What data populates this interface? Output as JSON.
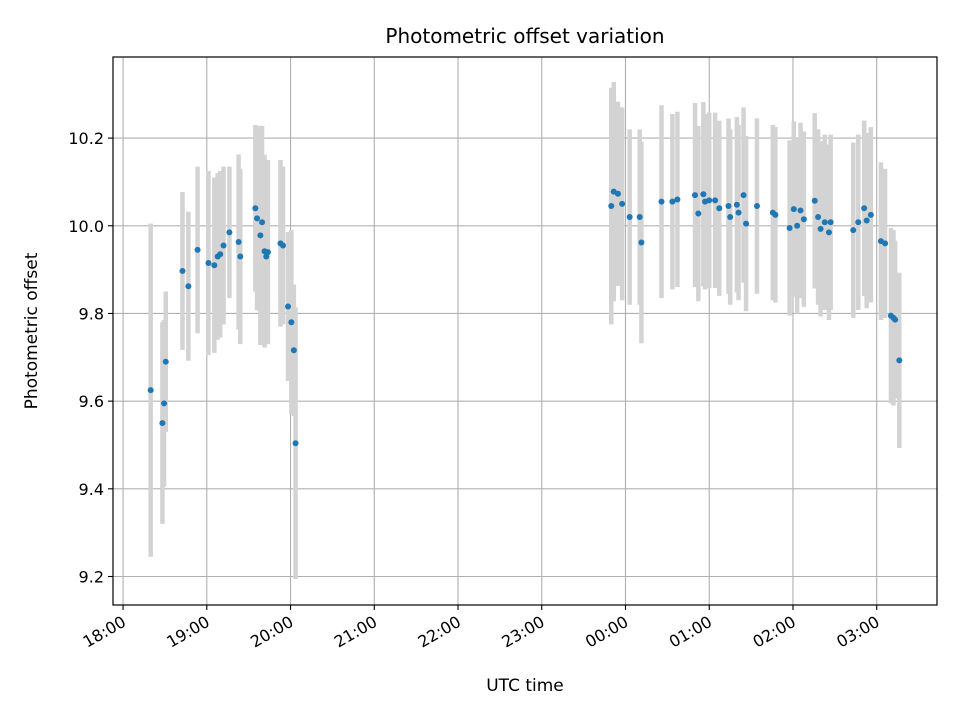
{
  "chart_data": {
    "type": "scatter",
    "title": "Photometric offset variation",
    "xlabel": "UTC time",
    "ylabel": "Photometric offset",
    "x_ticks": [
      "18:00",
      "19:00",
      "20:00",
      "21:00",
      "22:00",
      "23:00",
      "00:00",
      "01:00",
      "02:00",
      "03:00"
    ],
    "x_tick_hours": [
      0,
      1,
      2,
      3,
      4,
      5,
      6,
      7,
      8,
      9
    ],
    "x_axis_start": "18:00",
    "x_unit": "hours after 18:00 UTC",
    "xlim": [
      -0.12,
      9.72
    ],
    "y_ticks": [
      9.2,
      9.4,
      9.6,
      9.8,
      10.0,
      10.2
    ],
    "ylim": [
      9.135,
      10.385
    ],
    "grid": true,
    "colors": {
      "marker": "#1f77b4",
      "errorbar": "#d3d3d3",
      "grid": "#b0b0b0"
    },
    "series": [
      {
        "points": [
          [
            0.33,
            9.625,
            0.38
          ],
          [
            0.47,
            9.55,
            0.23
          ],
          [
            0.49,
            9.595,
            0.19
          ],
          [
            0.51,
            9.69,
            0.16
          ],
          [
            0.71,
            9.897,
            0.18
          ],
          [
            0.78,
            9.862,
            0.17
          ],
          [
            0.89,
            9.945,
            0.19
          ],
          [
            1.02,
            9.915,
            0.21
          ],
          [
            1.09,
            9.91,
            0.2
          ],
          [
            1.13,
            9.93,
            0.19
          ],
          [
            1.16,
            9.935,
            0.19
          ],
          [
            1.2,
            9.955,
            0.18
          ],
          [
            1.27,
            9.985,
            0.15
          ],
          [
            1.38,
            9.963,
            0.2
          ],
          [
            1.4,
            9.93,
            0.2
          ],
          [
            1.58,
            10.04,
            0.19
          ],
          [
            1.6,
            10.017,
            0.21
          ],
          [
            1.64,
            9.978,
            0.25
          ],
          [
            1.66,
            10.008,
            0.22
          ],
          [
            1.69,
            9.942,
            0.22
          ],
          [
            1.71,
            9.93,
            0.2
          ],
          [
            1.73,
            9.94,
            0.21
          ],
          [
            1.88,
            9.96,
            0.19
          ],
          [
            1.91,
            9.955,
            0.18
          ],
          [
            1.97,
            9.816,
            0.17
          ],
          [
            2.01,
            9.78,
            0.21
          ],
          [
            2.04,
            9.716,
            0.15
          ],
          [
            2.06,
            9.504,
            0.31
          ],
          [
            5.83,
            10.045,
            0.27
          ],
          [
            5.86,
            10.078,
            0.25
          ],
          [
            5.91,
            10.073,
            0.21
          ],
          [
            5.96,
            10.05,
            0.22
          ],
          [
            6.05,
            10.02,
            0.2
          ],
          [
            6.17,
            10.02,
            0.2
          ],
          [
            6.19,
            9.962,
            0.23
          ],
          [
            6.43,
            10.055,
            0.22
          ],
          [
            6.56,
            10.055,
            0.2
          ],
          [
            6.62,
            10.06,
            0.2
          ],
          [
            6.83,
            10.07,
            0.21
          ],
          [
            6.87,
            10.028,
            0.2
          ],
          [
            6.93,
            10.072,
            0.21
          ],
          [
            6.95,
            10.055,
            0.2
          ],
          [
            7.0,
            10.058,
            0.2
          ],
          [
            7.07,
            10.058,
            0.2
          ],
          [
            7.12,
            10.04,
            0.2
          ],
          [
            7.23,
            10.045,
            0.2
          ],
          [
            7.25,
            10.02,
            0.2
          ],
          [
            7.33,
            10.048,
            0.2
          ],
          [
            7.35,
            10.03,
            0.2
          ],
          [
            7.41,
            10.07,
            0.2
          ],
          [
            7.44,
            10.005,
            0.2
          ],
          [
            7.57,
            10.045,
            0.2
          ],
          [
            7.76,
            10.03,
            0.2
          ],
          [
            7.79,
            10.025,
            0.2
          ],
          [
            7.96,
            9.995,
            0.2
          ],
          [
            8.01,
            10.038,
            0.2
          ],
          [
            8.05,
            10.0,
            0.2
          ],
          [
            8.09,
            10.035,
            0.2
          ],
          [
            8.13,
            10.015,
            0.2
          ],
          [
            8.26,
            10.057,
            0.2
          ],
          [
            8.3,
            10.02,
            0.2
          ],
          [
            8.33,
            9.993,
            0.2
          ],
          [
            8.38,
            10.008,
            0.2
          ],
          [
            8.43,
            9.985,
            0.2
          ],
          [
            8.45,
            10.008,
            0.2
          ],
          [
            8.72,
            9.99,
            0.2
          ],
          [
            8.78,
            10.008,
            0.2
          ],
          [
            8.85,
            10.04,
            0.2
          ],
          [
            8.88,
            10.012,
            0.2
          ],
          [
            8.93,
            10.025,
            0.2
          ],
          [
            9.05,
            9.965,
            0.18
          ],
          [
            9.1,
            9.96,
            0.17
          ],
          [
            9.17,
            9.795,
            0.2
          ],
          [
            9.2,
            9.79,
            0.2
          ],
          [
            9.22,
            9.786,
            0.18
          ],
          [
            9.27,
            9.693,
            0.2
          ]
        ]
      }
    ]
  }
}
